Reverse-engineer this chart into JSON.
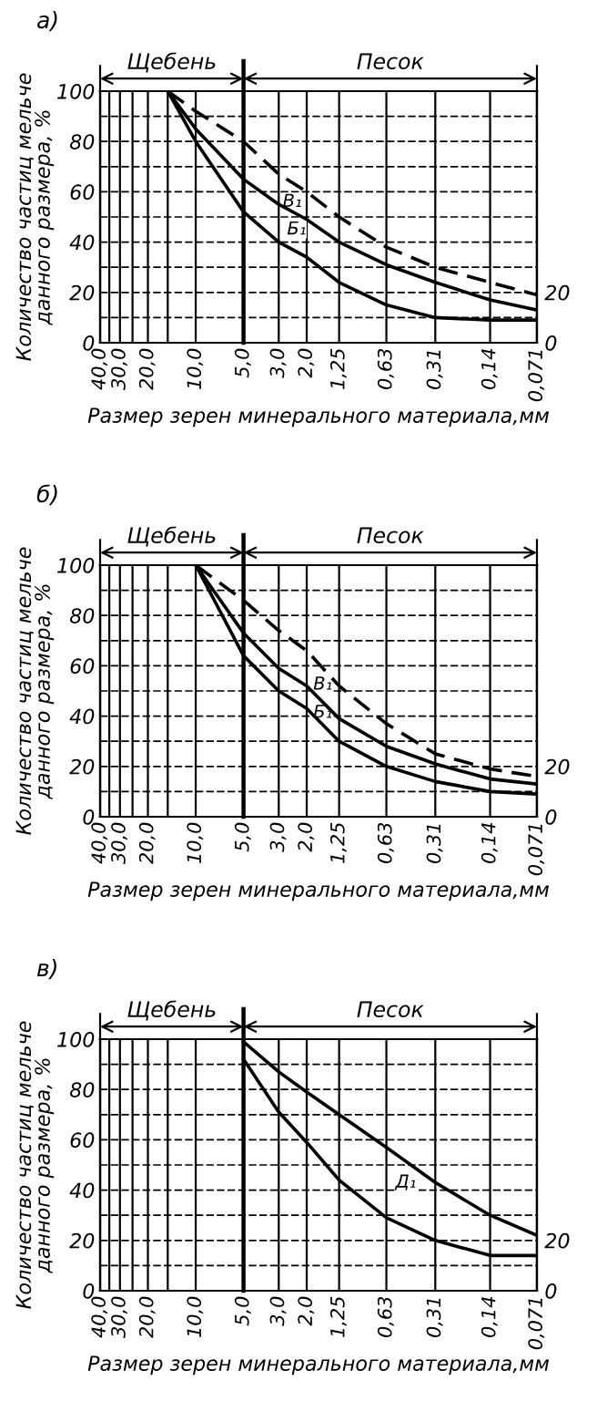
{
  "chart_data": [
    {
      "type": "line",
      "title": "а)",
      "xlabel": "Размер зерен минерального материала,мм",
      "ylabel": "Количество частиц мельче\nданного размера, %",
      "log": "x",
      "xlim": [
        40,
        0.071
      ],
      "xticks": [
        {
          "value": 40,
          "label": "40,0"
        },
        {
          "value": 35,
          "label": null
        },
        {
          "value": 30,
          "label": "30,0"
        },
        {
          "value": 25,
          "label": null
        },
        {
          "value": 20,
          "label": "20,0"
        },
        {
          "value": 15,
          "label": null
        },
        {
          "value": 10,
          "label": "10,0"
        },
        {
          "value": 5,
          "label": "5,0"
        },
        {
          "value": 3,
          "label": "3,0"
        },
        {
          "value": 2,
          "label": "2,0"
        },
        {
          "value": 1.25,
          "label": "1,25"
        },
        {
          "value": 0.63,
          "label": "0,63"
        },
        {
          "value": 0.31,
          "label": "0,31"
        },
        {
          "value": 0.14,
          "label": "0,14"
        },
        {
          "value": 0.071,
          "label": "0,071"
        }
      ],
      "ylim": [
        0,
        100
      ],
      "yticks": [
        0,
        {
          "value": 10,
          "label": null
        },
        20,
        {
          "value": 30,
          "label": null
        },
        40,
        {
          "value": 50,
          "label": null
        },
        60,
        {
          "value": 70,
          "label": null
        },
        80,
        {
          "value": 90,
          "label": null
        },
        100
      ],
      "y2lim": [
        0,
        100
      ],
      "y2ticks": [
        0,
        20
      ],
      "grid": true,
      "ref_lines": [
        {
          "axis": "x",
          "value": 5,
          "label": null
        }
      ],
      "annotations": [
        "Щебень",
        "Песок",
        "В₁",
        "Б₁"
      ],
      "x": [
        15,
        10,
        5,
        3,
        2,
        1.25,
        0.63,
        0.31,
        0.14,
        0.071
      ],
      "series": [
        {
          "color": "#000000",
          "line_style": "dashed",
          "values": [
            100,
            92,
            80,
            67,
            60,
            50,
            38,
            30,
            24,
            19
          ]
        },
        {
          "color": "#000000",
          "line_style": "solid",
          "values": [
            100,
            85,
            65,
            55,
            49,
            40,
            31,
            24,
            17,
            13
          ]
        },
        {
          "color": "#000000",
          "line_style": "solid",
          "values": [
            100,
            80,
            52,
            40,
            34,
            24,
            15,
            10,
            9,
            9
          ]
        }
      ]
    },
    {
      "type": "line",
      "title": "б)",
      "xlabel": "Размер зерен минерального материала,мм",
      "ylabel": "Количество частиц мельче\nданного размера, %",
      "log": "x",
      "xlim": [
        40,
        0.071
      ],
      "xticks": [
        {
          "value": 40,
          "label": "40,0"
        },
        {
          "value": 35,
          "label": null
        },
        {
          "value": 30,
          "label": "30,0"
        },
        {
          "value": 25,
          "label": null
        },
        {
          "value": 20,
          "label": "20,0"
        },
        {
          "value": 15,
          "label": null
        },
        {
          "value": 10,
          "label": "10,0"
        },
        {
          "value": 5,
          "label": "5,0"
        },
        {
          "value": 3,
          "label": "3,0"
        },
        {
          "value": 2,
          "label": "2,0"
        },
        {
          "value": 1.25,
          "label": "1,25"
        },
        {
          "value": 0.63,
          "label": "0,63"
        },
        {
          "value": 0.31,
          "label": "0,31"
        },
        {
          "value": 0.14,
          "label": "0,14"
        },
        {
          "value": 0.071,
          "label": "0,071"
        }
      ],
      "ylim": [
        0,
        100
      ],
      "yticks": [
        0,
        {
          "value": 10,
          "label": null
        },
        20,
        {
          "value": 30,
          "label": null
        },
        40,
        {
          "value": 50,
          "label": null
        },
        60,
        {
          "value": 70,
          "label": null
        },
        80,
        {
          "value": 90,
          "label": null
        },
        100
      ],
      "y2lim": [
        0,
        100
      ],
      "y2ticks": [
        0,
        20
      ],
      "grid": true,
      "ref_lines": [
        {
          "axis": "x",
          "value": 5,
          "label": null
        }
      ],
      "annotations": [
        "Щебень",
        "Песок",
        "В₁",
        "Б₁"
      ],
      "x": [
        10,
        5,
        3,
        2,
        1.25,
        0.63,
        0.31,
        0.14,
        0.071
      ],
      "series": [
        {
          "color": "#000000",
          "line_style": "dashed",
          "values": [
            100,
            86,
            74,
            66,
            52,
            37,
            25,
            19,
            16
          ]
        },
        {
          "color": "#000000",
          "line_style": "solid",
          "values": [
            100,
            73,
            59,
            52,
            39,
            28,
            21,
            15,
            13
          ]
        },
        {
          "color": "#000000",
          "line_style": "solid",
          "values": [
            100,
            64,
            50,
            43,
            30,
            20,
            14,
            10,
            9
          ]
        }
      ]
    },
    {
      "type": "line",
      "title": "в)",
      "xlabel": "Размер зерен минерального материала,мм",
      "ylabel": "Количество частиц мельче\nданного размера, %",
      "log": "x",
      "xlim": [
        40,
        0.071
      ],
      "xticks": [
        {
          "value": 40,
          "label": "40,0"
        },
        {
          "value": 35,
          "label": null
        },
        {
          "value": 30,
          "label": "30,0"
        },
        {
          "value": 25,
          "label": null
        },
        {
          "value": 20,
          "label": "20,0"
        },
        {
          "value": 15,
          "label": null
        },
        {
          "value": 10,
          "label": "10,0"
        },
        {
          "value": 5,
          "label": "5,0"
        },
        {
          "value": 3,
          "label": "3,0"
        },
        {
          "value": 2,
          "label": "2,0"
        },
        {
          "value": 1.25,
          "label": "1,25"
        },
        {
          "value": 0.63,
          "label": "0,63"
        },
        {
          "value": 0.31,
          "label": "0,31"
        },
        {
          "value": 0.14,
          "label": "0,14"
        },
        {
          "value": 0.071,
          "label": "0,071"
        }
      ],
      "ylim": [
        0,
        100
      ],
      "yticks": [
        0,
        {
          "value": 10,
          "label": null
        },
        20,
        {
          "value": 30,
          "label": null
        },
        40,
        {
          "value": 50,
          "label": null
        },
        60,
        {
          "value": 70,
          "label": null
        },
        80,
        {
          "value": 90,
          "label": null
        },
        100
      ],
      "y2lim": [
        0,
        100
      ],
      "y2ticks": [
        0,
        20
      ],
      "grid": true,
      "ref_lines": [
        {
          "axis": "x",
          "value": 5,
          "label": null
        }
      ],
      "annotations": [
        "Щебень",
        "Песок",
        "Д₁"
      ],
      "x": [
        5,
        3,
        2,
        1.25,
        0.63,
        0.31,
        0.14,
        0.071
      ],
      "series": [
        {
          "color": "#000000",
          "line_style": "solid",
          "values": [
            99,
            87,
            79,
            70,
            57,
            43,
            30,
            22
          ]
        },
        {
          "color": "#000000",
          "line_style": "solid",
          "values": [
            92,
            71,
            59,
            44,
            29,
            20,
            14,
            14
          ]
        }
      ]
    }
  ]
}
